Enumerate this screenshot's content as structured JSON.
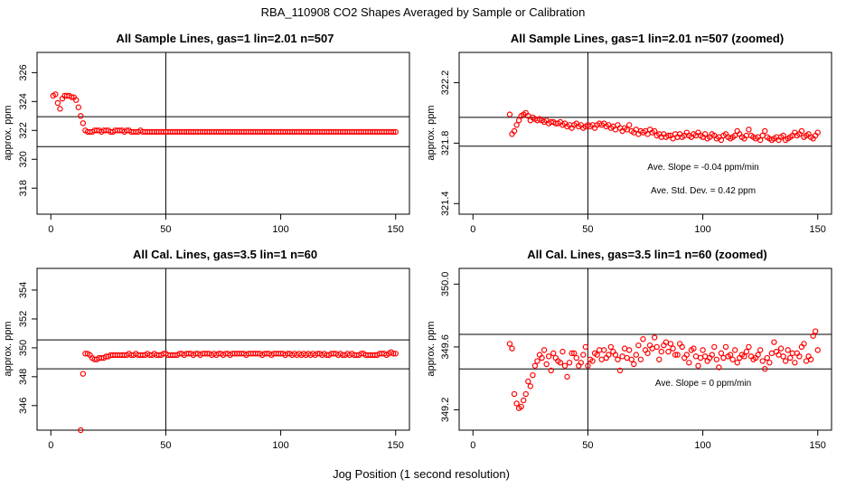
{
  "figure": {
    "title": "RBA_110908  CO2 Shapes Averaged by Sample or Calibration",
    "xlabel": "Jog Position (1 second resolution)",
    "marker_color": "#ff0000"
  },
  "chart_data": [
    {
      "type": "scatter",
      "title": "All Sample Lines, gas=1 lin=2.01 n=507",
      "ylabel": "approx. ppm",
      "xlim": [
        -6,
        156
      ],
      "ylim": [
        316.2,
        327.4
      ],
      "xticks": [
        0,
        50,
        100,
        150
      ],
      "yticks": [
        318,
        320,
        322,
        324,
        326
      ],
      "hlines": [
        322.95,
        320.88
      ],
      "vline": 50,
      "annotations": [],
      "x": [
        1,
        2,
        3,
        4,
        5,
        6,
        7,
        8,
        9,
        10,
        11,
        12,
        13,
        14,
        15,
        16,
        17,
        18,
        19,
        20,
        21,
        22,
        23,
        24,
        25,
        26,
        27,
        28,
        29,
        30,
        31,
        32,
        33,
        34,
        35,
        36,
        37,
        38,
        39,
        40,
        41,
        42,
        43,
        44,
        45,
        46,
        47,
        48,
        49,
        50,
        51,
        52,
        53,
        54,
        55,
        56,
        57,
        58,
        59,
        60,
        61,
        62,
        63,
        64,
        65,
        66,
        67,
        68,
        69,
        70,
        71,
        72,
        73,
        74,
        75,
        76,
        77,
        78,
        79,
        80,
        81,
        82,
        83,
        84,
        85,
        86,
        87,
        88,
        89,
        90,
        91,
        92,
        93,
        94,
        95,
        96,
        97,
        98,
        99,
        100,
        101,
        102,
        103,
        104,
        105,
        106,
        107,
        108,
        109,
        110,
        111,
        112,
        113,
        114,
        115,
        116,
        117,
        118,
        119,
        120,
        121,
        122,
        123,
        124,
        125,
        126,
        127,
        128,
        129,
        130,
        131,
        132,
        133,
        134,
        135,
        136,
        137,
        138,
        139,
        140,
        141,
        142,
        143,
        144,
        145,
        146,
        147,
        148,
        149,
        150
      ],
      "y": [
        324.4,
        324.5,
        323.9,
        323.5,
        324.2,
        324.4,
        324.4,
        324.4,
        324.3,
        324.3,
        324.1,
        323.6,
        323.0,
        322.5,
        322.0,
        321.9,
        321.9,
        321.9,
        322.0,
        322.0,
        322.0,
        321.9,
        322.0,
        322.0,
        322.0,
        321.9,
        321.9,
        322.0,
        322.0,
        322.0,
        322.0,
        321.9,
        322.0,
        322.0,
        321.9,
        321.9,
        321.9,
        321.9,
        322.0,
        321.9,
        321.9,
        321.9,
        321.9,
        321.9,
        321.9,
        321.9,
        321.9,
        321.9,
        321.9,
        321.9,
        321.9,
        321.9,
        321.9,
        321.9,
        321.9,
        321.9,
        321.9,
        321.9,
        321.9,
        321.9,
        321.9,
        321.9,
        321.9,
        321.9,
        321.9,
        321.9,
        321.9,
        321.9,
        321.9,
        321.9,
        321.9,
        321.9,
        321.9,
        321.9,
        321.9,
        321.9,
        321.9,
        321.9,
        321.9,
        321.9,
        321.9,
        321.9,
        321.9,
        321.9,
        321.9,
        321.9,
        321.9,
        321.9,
        321.9,
        321.9,
        321.9,
        321.9,
        321.9,
        321.9,
        321.9,
        321.9,
        321.9,
        321.9,
        321.9,
        321.9,
        321.9,
        321.9,
        321.9,
        321.9,
        321.9,
        321.9,
        321.9,
        321.9,
        321.9,
        321.9,
        321.9,
        321.9,
        321.9,
        321.9,
        321.9,
        321.9,
        321.9,
        321.9,
        321.9,
        321.9,
        321.9,
        321.9,
        321.9,
        321.9,
        321.9,
        321.9,
        321.9,
        321.9,
        321.9,
        321.9,
        321.9,
        321.9,
        321.9,
        321.9,
        321.9,
        321.9,
        321.9,
        321.9,
        321.9,
        321.9,
        321.9,
        321.9,
        321.9,
        321.9,
        321.9,
        321.9,
        321.9,
        321.9,
        321.9,
        321.9
      ]
    },
    {
      "type": "scatter",
      "title": "All Sample Lines, gas=1 lin=2.01 n=507 (zoomed)",
      "ylabel": "approx. ppm",
      "xlim": [
        -6,
        156
      ],
      "ylim": [
        321.33,
        322.4
      ],
      "xticks": [
        0,
        50,
        100,
        150
      ],
      "yticks": [
        321.4,
        321.8,
        322.2
      ],
      "hlines": [
        321.97,
        321.78
      ],
      "vline": 50,
      "annotations": [
        "Ave. Slope =  -0.04  ppm/min",
        "Ave. Std. Dev. =  0.42  ppm"
      ],
      "x": [
        16,
        17,
        18,
        19,
        20,
        21,
        22,
        23,
        24,
        25,
        26,
        27,
        28,
        29,
        30,
        31,
        32,
        33,
        34,
        35,
        36,
        37,
        38,
        39,
        40,
        41,
        42,
        43,
        44,
        45,
        46,
        47,
        48,
        49,
        50,
        51,
        52,
        53,
        54,
        55,
        56,
        57,
        58,
        59,
        60,
        61,
        62,
        63,
        64,
        65,
        66,
        67,
        68,
        69,
        70,
        71,
        72,
        73,
        74,
        75,
        76,
        77,
        78,
        79,
        80,
        81,
        82,
        83,
        84,
        85,
        86,
        87,
        88,
        89,
        90,
        91,
        92,
        93,
        94,
        95,
        96,
        97,
        98,
        99,
        100,
        101,
        102,
        103,
        104,
        105,
        106,
        107,
        108,
        109,
        110,
        111,
        112,
        113,
        114,
        115,
        116,
        117,
        118,
        119,
        120,
        121,
        122,
        123,
        124,
        125,
        126,
        127,
        128,
        129,
        130,
        131,
        132,
        133,
        134,
        135,
        136,
        137,
        138,
        139,
        140,
        141,
        142,
        143,
        144,
        145,
        146,
        147,
        148,
        149,
        150
      ],
      "y": [
        321.99,
        321.86,
        321.88,
        321.92,
        321.95,
        321.98,
        321.99,
        322.0,
        321.98,
        321.95,
        321.97,
        321.96,
        321.95,
        321.96,
        321.95,
        321.94,
        321.95,
        321.93,
        321.94,
        321.94,
        321.93,
        321.93,
        321.94,
        321.92,
        321.93,
        321.91,
        321.92,
        321.9,
        321.92,
        321.93,
        321.91,
        321.92,
        321.9,
        321.91,
        321.92,
        321.91,
        321.92,
        321.9,
        321.92,
        321.93,
        321.92,
        321.93,
        321.91,
        321.92,
        321.9,
        321.91,
        321.89,
        321.92,
        321.9,
        321.88,
        321.9,
        321.89,
        321.92,
        321.88,
        321.87,
        321.89,
        321.86,
        321.88,
        321.87,
        321.88,
        321.86,
        321.89,
        321.87,
        321.88,
        321.85,
        321.86,
        321.84,
        321.86,
        321.84,
        321.85,
        321.85,
        321.83,
        321.86,
        321.84,
        321.86,
        321.84,
        321.85,
        321.87,
        321.85,
        321.84,
        321.86,
        321.85,
        321.87,
        321.85,
        321.84,
        321.86,
        321.83,
        321.84,
        321.86,
        321.85,
        321.83,
        321.84,
        321.82,
        321.85,
        321.86,
        321.84,
        321.83,
        321.84,
        321.85,
        321.88,
        321.86,
        321.84,
        321.83,
        321.85,
        321.89,
        321.85,
        321.84,
        321.83,
        321.84,
        321.82,
        321.85,
        321.88,
        321.84,
        321.83,
        321.82,
        321.83,
        321.84,
        321.82,
        321.84,
        321.85,
        321.82,
        321.83,
        321.84,
        321.85,
        321.87,
        321.85,
        321.86,
        321.88,
        321.84,
        321.85,
        321.86,
        321.84,
        321.83,
        321.85,
        321.87
      ]
    },
    {
      "type": "scatter",
      "title": "All Cal. Lines, gas=3.5 lin=1 n=60",
      "ylabel": "approx. ppm",
      "xlim": [
        -6,
        156
      ],
      "ylim": [
        344.3,
        355.5
      ],
      "xticks": [
        0,
        50,
        100,
        150
      ],
      "yticks": [
        346,
        348,
        350,
        352,
        354
      ],
      "hlines": [
        350.55,
        348.55
      ],
      "vline": 50,
      "annotations": [],
      "x": [
        13,
        14,
        15,
        16,
        17,
        18,
        19,
        20,
        21,
        22,
        23,
        24,
        25,
        26,
        27,
        28,
        29,
        30,
        31,
        32,
        33,
        34,
        35,
        36,
        37,
        38,
        39,
        40,
        41,
        42,
        43,
        44,
        45,
        46,
        47,
        48,
        49,
        50,
        51,
        52,
        53,
        54,
        55,
        56,
        57,
        58,
        59,
        60,
        61,
        62,
        63,
        64,
        65,
        66,
        67,
        68,
        69,
        70,
        71,
        72,
        73,
        74,
        75,
        76,
        77,
        78,
        79,
        80,
        81,
        82,
        83,
        84,
        85,
        86,
        87,
        88,
        89,
        90,
        91,
        92,
        93,
        94,
        95,
        96,
        97,
        98,
        99,
        100,
        101,
        102,
        103,
        104,
        105,
        106,
        107,
        108,
        109,
        110,
        111,
        112,
        113,
        114,
        115,
        116,
        117,
        118,
        119,
        120,
        121,
        122,
        123,
        124,
        125,
        126,
        127,
        128,
        129,
        130,
        131,
        132,
        133,
        134,
        135,
        136,
        137,
        138,
        139,
        140,
        141,
        142,
        143,
        144,
        145,
        146,
        147,
        148,
        149,
        150
      ],
      "y": [
        344.3,
        348.2,
        349.6,
        349.6,
        349.5,
        349.3,
        349.2,
        349.2,
        349.3,
        349.3,
        349.3,
        349.4,
        349.4,
        349.5,
        349.5,
        349.5,
        349.5,
        349.5,
        349.5,
        349.5,
        349.5,
        349.6,
        349.5,
        349.5,
        349.6,
        349.5,
        349.5,
        349.5,
        349.5,
        349.6,
        349.5,
        349.5,
        349.6,
        349.5,
        349.5,
        349.5,
        349.6,
        349.6,
        349.5,
        349.5,
        349.5,
        349.5,
        349.5,
        349.6,
        349.6,
        349.5,
        349.6,
        349.6,
        349.6,
        349.5,
        349.6,
        349.6,
        349.5,
        349.6,
        349.6,
        349.6,
        349.6,
        349.5,
        349.6,
        349.5,
        349.6,
        349.6,
        349.5,
        349.6,
        349.6,
        349.5,
        349.6,
        349.6,
        349.6,
        349.6,
        349.6,
        349.6,
        349.5,
        349.6,
        349.6,
        349.6,
        349.6,
        349.6,
        349.6,
        349.5,
        349.6,
        349.6,
        349.6,
        349.5,
        349.6,
        349.6,
        349.6,
        349.6,
        349.6,
        349.5,
        349.6,
        349.6,
        349.5,
        349.6,
        349.5,
        349.6,
        349.5,
        349.6,
        349.5,
        349.6,
        349.5,
        349.6,
        349.5,
        349.6,
        349.6,
        349.5,
        349.6,
        349.5,
        349.5,
        349.6,
        349.6,
        349.6,
        349.5,
        349.6,
        349.5,
        349.5,
        349.6,
        349.5,
        349.6,
        349.5,
        349.5,
        349.5,
        349.6,
        349.6,
        349.5,
        349.5,
        349.5,
        349.5,
        349.5,
        349.5,
        349.6,
        349.6,
        349.6,
        349.5,
        349.6,
        349.7,
        349.6,
        349.6
      ]
    },
    {
      "type": "scatter",
      "title": "All Cal. Lines, gas=3.5 lin=1 n=60 (zoomed)",
      "ylabel": "approx. ppm",
      "xlim": [
        -6,
        156
      ],
      "ylim": [
        349.07,
        350.1
      ],
      "xticks": [
        0,
        50,
        100,
        150
      ],
      "yticks": [
        349.2,
        349.6,
        350.0
      ],
      "hlines": [
        349.68,
        349.46
      ],
      "vline": 50,
      "annotations": [
        "Ave. Slope =  0  ppm/min"
      ],
      "x": [
        16,
        17,
        18,
        19,
        20,
        21,
        22,
        23,
        24,
        25,
        26,
        27,
        28,
        29,
        30,
        31,
        32,
        33,
        34,
        35,
        36,
        37,
        38,
        39,
        40,
        41,
        42,
        43,
        44,
        45,
        46,
        47,
        48,
        49,
        50,
        51,
        52,
        53,
        54,
        55,
        56,
        57,
        58,
        59,
        60,
        61,
        62,
        63,
        64,
        65,
        66,
        67,
        68,
        69,
        70,
        71,
        72,
        73,
        74,
        75,
        76,
        77,
        78,
        79,
        80,
        81,
        82,
        83,
        84,
        85,
        86,
        87,
        88,
        89,
        90,
        91,
        92,
        93,
        94,
        95,
        96,
        97,
        98,
        99,
        100,
        101,
        102,
        103,
        104,
        105,
        106,
        107,
        108,
        109,
        110,
        111,
        112,
        113,
        114,
        115,
        116,
        117,
        118,
        119,
        120,
        121,
        122,
        123,
        124,
        125,
        126,
        127,
        128,
        129,
        130,
        131,
        132,
        133,
        134,
        135,
        136,
        137,
        138,
        139,
        140,
        141,
        142,
        143,
        144,
        145,
        146,
        147,
        148,
        149,
        150
      ],
      "y": [
        349.62,
        349.59,
        349.3,
        349.24,
        349.21,
        349.22,
        349.26,
        349.3,
        349.38,
        349.35,
        349.42,
        349.48,
        349.51,
        349.55,
        349.53,
        349.58,
        349.49,
        349.54,
        349.45,
        349.56,
        349.53,
        349.51,
        349.5,
        349.57,
        349.48,
        349.41,
        349.5,
        349.56,
        349.56,
        349.53,
        349.48,
        349.5,
        349.55,
        349.6,
        349.48,
        349.52,
        349.51,
        349.56,
        349.55,
        349.58,
        349.52,
        349.58,
        349.53,
        349.55,
        349.6,
        349.57,
        349.55,
        349.52,
        349.45,
        349.54,
        349.59,
        349.53,
        349.58,
        349.52,
        349.49,
        349.55,
        349.61,
        349.52,
        349.65,
        349.58,
        349.56,
        349.61,
        349.59,
        349.66,
        349.6,
        349.52,
        349.57,
        349.61,
        349.63,
        349.57,
        349.62,
        349.59,
        349.55,
        349.55,
        349.62,
        349.6,
        349.53,
        349.55,
        349.5,
        349.58,
        349.59,
        349.54,
        349.48,
        349.53,
        349.58,
        349.54,
        349.51,
        349.53,
        349.55,
        349.6,
        349.52,
        349.47,
        349.56,
        349.53,
        349.6,
        349.54,
        349.55,
        349.52,
        349.58,
        349.5,
        349.53,
        349.55,
        349.54,
        349.57,
        349.6,
        349.54,
        349.52,
        349.53,
        349.55,
        349.58,
        349.51,
        349.46,
        349.53,
        349.5,
        349.56,
        349.63,
        349.57,
        349.55,
        349.59,
        349.54,
        349.51,
        349.58,
        349.53,
        349.56,
        349.5,
        349.56,
        349.54,
        349.6,
        349.62,
        349.51,
        349.54,
        349.52,
        349.67,
        349.7,
        349.58
      ]
    }
  ]
}
